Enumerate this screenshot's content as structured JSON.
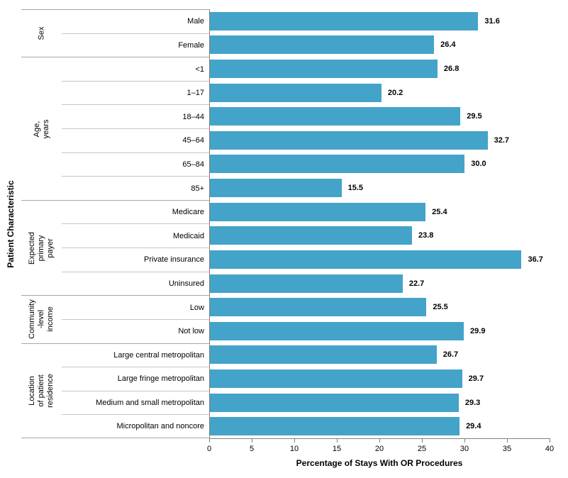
{
  "chart_data": {
    "type": "bar",
    "orientation": "horizontal",
    "xlabel": "Percentage of Stays With OR Procedures",
    "ylabel": "Patient Characteristic",
    "xlim": [
      0,
      40
    ],
    "xticks": [
      "0",
      "5",
      "10",
      "15",
      "20",
      "25",
      "30",
      "35",
      "40"
    ],
    "grid": false,
    "legend": false,
    "bar_color": "#44A3C9",
    "groups": [
      {
        "label": "Sex",
        "rows": [
          {
            "label": "Male",
            "value": 31.6,
            "value_label": "31.6"
          },
          {
            "label": "Female",
            "value": 26.4,
            "value_label": "26.4"
          }
        ]
      },
      {
        "label": "Age, years",
        "rows": [
          {
            "label": "<1",
            "value": 26.8,
            "value_label": "26.8"
          },
          {
            "label": "1–17",
            "value": 20.2,
            "value_label": "20.2"
          },
          {
            "label": "18–44",
            "value": 29.5,
            "value_label": "29.5"
          },
          {
            "label": "45–64",
            "value": 32.7,
            "value_label": "32.7"
          },
          {
            "label": "65–84",
            "value": 30.0,
            "value_label": "30.0"
          },
          {
            "label": "85+",
            "value": 15.5,
            "value_label": "15.5"
          }
        ]
      },
      {
        "label": "Expected primary\npayer",
        "rows": [
          {
            "label": "Medicare",
            "value": 25.4,
            "value_label": "25.4"
          },
          {
            "label": "Medicaid",
            "value": 23.8,
            "value_label": "23.8"
          },
          {
            "label": "Private insurance",
            "value": 36.7,
            "value_label": "36.7"
          },
          {
            "label": "Uninsured",
            "value": 22.7,
            "value_label": "22.7"
          }
        ]
      },
      {
        "label": "Community\n-level\nincome",
        "rows": [
          {
            "label": "Low",
            "value": 25.5,
            "value_label": "25.5"
          },
          {
            "label": "Not low",
            "value": 29.9,
            "value_label": "29.9"
          }
        ]
      },
      {
        "label": "Location of patient\nresidence",
        "rows": [
          {
            "label": "Large central metropolitan",
            "value": 26.7,
            "value_label": "26.7"
          },
          {
            "label": "Large fringe metropolitan",
            "value": 29.7,
            "value_label": "29.7"
          },
          {
            "label": "Medium and small metropolitan",
            "value": 29.3,
            "value_label": "29.3"
          },
          {
            "label": "Micropolitan and noncore",
            "value": 29.4,
            "value_label": "29.4"
          }
        ]
      }
    ]
  }
}
